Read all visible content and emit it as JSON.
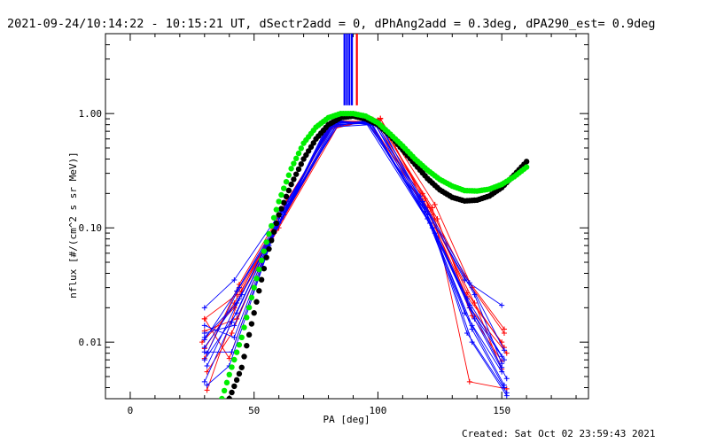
{
  "chart_data": {
    "type": "line",
    "title": "2021-09-24/10:14:22 - 10:15:21 UT, dSectr2add = 0, dPhAng2add = 0.3deg, dPA290_est=  0.9deg",
    "xlabel": "PA [deg]",
    "ylabel": "nflux [#/(cm^2 s sr MeV)]",
    "footer": "Created: Sat Oct 02 23:59:43 2021",
    "xlim": [
      -10,
      185
    ],
    "ylim": [
      0.0032,
      5.0
    ],
    "yscale": "log",
    "x_ticks": [
      0,
      50,
      100,
      150
    ],
    "x_tick_labels": [
      "0",
      "50",
      "100",
      "150"
    ],
    "y_ticks": [
      0.01,
      0.1,
      1.0
    ],
    "y_tick_labels": [
      "0.01",
      "0.10",
      "1.00"
    ],
    "grid": false,
    "colors": {
      "red": "#ff0000",
      "blue": "#0000ff",
      "black": "#000000",
      "green": "#00ee00"
    },
    "vertical_markers": [
      {
        "x": 86.5,
        "color": "#0000ff"
      },
      {
        "x": 87.5,
        "color": "#0000ff"
      },
      {
        "x": 88.5,
        "color": "#0000ff"
      },
      {
        "x": 89.5,
        "color": "#0000ff"
      },
      {
        "x": 91.5,
        "color": "#ff0000"
      }
    ],
    "measured_series": [
      {
        "color": "#0000ff",
        "x": [
          30,
          42,
          61,
          82,
          96,
          120,
          137,
          150
        ],
        "y": [
          0.02,
          0.035,
          0.14,
          0.8,
          0.82,
          0.13,
          0.02,
          0.0075
        ]
      },
      {
        "color": "#0000ff",
        "x": [
          30,
          43,
          60,
          80,
          98,
          118,
          135,
          150
        ],
        "y": [
          0.011,
          0.022,
          0.11,
          0.78,
          0.86,
          0.17,
          0.035,
          0.021
        ]
      },
      {
        "color": "#0000ff",
        "x": [
          30,
          41,
          58,
          84,
          99,
          121,
          138,
          151
        ],
        "y": [
          0.0045,
          0.015,
          0.09,
          0.84,
          0.8,
          0.11,
          0.014,
          0.0042
        ]
      },
      {
        "color": "#0000ff",
        "x": [
          31,
          44,
          62,
          83,
          97,
          122,
          136,
          152
        ],
        "y": [
          0.008,
          0.03,
          0.13,
          0.86,
          0.82,
          0.1,
          0.012,
          0.0036
        ]
      },
      {
        "color": "#0000ff",
        "x": [
          30,
          42,
          57,
          79,
          95,
          119,
          139,
          150
        ],
        "y": [
          0.014,
          0.011,
          0.08,
          0.74,
          0.87,
          0.15,
          0.026,
          0.0065
        ]
      },
      {
        "color": "#0000ff",
        "x": [
          30,
          43,
          59,
          81,
          100,
          117,
          137,
          151
        ],
        "y": [
          0.007,
          0.018,
          0.1,
          0.8,
          0.84,
          0.19,
          0.033,
          0.0085
        ]
      },
      {
        "color": "#0000ff",
        "x": [
          31,
          40,
          60,
          85,
          98,
          123,
          138,
          152
        ],
        "y": [
          0.0042,
          0.0062,
          0.12,
          0.86,
          0.79,
          0.09,
          0.01,
          0.0034
        ]
      },
      {
        "color": "#0000ff",
        "x": [
          30,
          45,
          63,
          82,
          96,
          120,
          135,
          150
        ],
        "y": [
          0.009,
          0.026,
          0.16,
          0.83,
          0.85,
          0.12,
          0.018,
          0.0055
        ]
      },
      {
        "color": "#0000ff",
        "x": [
          30,
          42,
          56,
          80,
          101,
          118,
          136,
          151
        ],
        "y": [
          0.012,
          0.014,
          0.07,
          0.76,
          0.81,
          0.16,
          0.024,
          0.007
        ]
      },
      {
        "color": "#0000ff",
        "x": [
          31,
          44,
          61,
          84,
          97,
          121,
          139,
          152
        ],
        "y": [
          0.0062,
          0.024,
          0.12,
          0.85,
          0.83,
          0.11,
          0.016,
          0.0048
        ]
      },
      {
        "color": "#0000ff",
        "x": [
          30,
          41,
          58,
          83,
          99,
          119,
          137,
          150
        ],
        "y": [
          0.0082,
          0.0082,
          0.09,
          0.82,
          0.86,
          0.14,
          0.021,
          0.006
        ]
      },
      {
        "color": "#0000ff",
        "x": [
          30,
          43,
          62,
          81,
          95,
          122,
          138,
          151
        ],
        "y": [
          0.0105,
          0.028,
          0.14,
          0.79,
          0.84,
          0.1,
          0.013,
          0.004
        ]
      },
      {
        "color": "#ff0000",
        "x": [
          30,
          43,
          61,
          80,
          101,
          123,
          138,
          151
        ],
        "y": [
          0.016,
          0.026,
          0.12,
          0.74,
          0.9,
          0.16,
          0.03,
          0.012
        ]
      },
      {
        "color": "#ff0000",
        "x": [
          29,
          42,
          60,
          85,
          99,
          120,
          136,
          150
        ],
        "y": [
          0.01,
          0.02,
          0.1,
          0.86,
          0.85,
          0.14,
          0.025,
          0.01
        ]
      },
      {
        "color": "#ff0000",
        "x": [
          30,
          44,
          62,
          82,
          100,
          124,
          137,
          152
        ],
        "y": [
          0.0072,
          0.032,
          0.15,
          0.82,
          0.88,
          0.12,
          0.02,
          0.008
        ]
      },
      {
        "color": "#ff0000",
        "x": [
          31,
          41,
          57,
          79,
          98,
          118,
          135,
          151
        ],
        "y": [
          0.0055,
          0.012,
          0.08,
          0.71,
          0.89,
          0.2,
          0.038,
          0.013
        ]
      },
      {
        "color": "#ff0000",
        "x": [
          30,
          43,
          59,
          84,
          97,
          121,
          139,
          150
        ],
        "y": [
          0.0125,
          0.016,
          0.095,
          0.84,
          0.84,
          0.13,
          0.022,
          0.0058
        ]
      },
      {
        "color": "#ff0000",
        "x": [
          30,
          42,
          60,
          81,
          100,
          122,
          137,
          152
        ],
        "y": [
          0.0088,
          0.022,
          0.11,
          0.78,
          0.87,
          0.15,
          0.0045,
          0.0039
        ]
      },
      {
        "color": "#ff0000",
        "x": [
          31,
          45,
          63,
          83,
          96,
          119,
          136,
          151
        ],
        "y": [
          0.0038,
          0.028,
          0.17,
          0.85,
          0.83,
          0.18,
          0.027,
          0.009
        ]
      },
      {
        "color": "#ff0000",
        "x": [
          30,
          40,
          58,
          80,
          101,
          120,
          138,
          150
        ],
        "y": [
          0.016,
          0.0072,
          0.09,
          0.76,
          0.91,
          0.15,
          0.017,
          0.0068
        ]
      }
    ],
    "model_curves": [
      {
        "color": "#000000",
        "x": [
          40,
          45,
          50,
          55,
          60,
          65,
          70,
          75,
          80,
          85,
          90,
          95,
          100,
          105,
          110,
          115,
          120,
          125,
          130,
          135,
          140,
          145,
          150,
          155,
          160
        ],
        "y": [
          0.0032,
          0.006,
          0.018,
          0.055,
          0.13,
          0.24,
          0.4,
          0.6,
          0.8,
          0.92,
          0.95,
          0.9,
          0.8,
          0.64,
          0.48,
          0.36,
          0.27,
          0.215,
          0.185,
          0.172,
          0.175,
          0.19,
          0.225,
          0.29,
          0.38
        ]
      },
      {
        "color": "#00ee00",
        "x": [
          37,
          40,
          45,
          50,
          55,
          60,
          65,
          70,
          75,
          80,
          85,
          90,
          95,
          100,
          105,
          110,
          115,
          120,
          125,
          130,
          135,
          140,
          145,
          150,
          155,
          160
        ],
        "y": [
          0.0032,
          0.0052,
          0.011,
          0.03,
          0.075,
          0.17,
          0.33,
          0.55,
          0.76,
          0.92,
          1.0,
          1.0,
          0.95,
          0.83,
          0.66,
          0.52,
          0.4,
          0.32,
          0.265,
          0.232,
          0.212,
          0.21,
          0.218,
          0.24,
          0.28,
          0.34
        ]
      }
    ]
  }
}
